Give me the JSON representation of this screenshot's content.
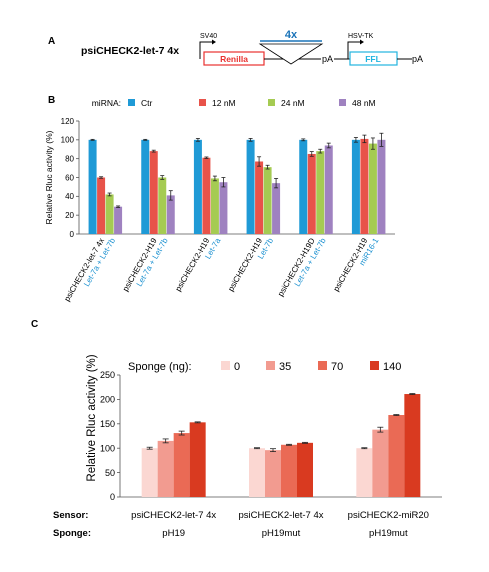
{
  "panelA": {
    "letter": "A",
    "construct_name": "psiCHECK2-let-7 4x",
    "sv40": "SV40",
    "hsvtk": "HSV-TK",
    "renilla": "Renilla",
    "ffl": "FFL",
    "insert": "4x",
    "pA1": "pA",
    "pA2": "pA",
    "colors": {
      "renilla": "#e8312f",
      "ffl": "#22b5e0",
      "insert": "#1a73b8"
    }
  },
  "chart_data": [
    {
      "panel": "B",
      "type": "bar",
      "legend_title": "miRNA:",
      "ylabel": "Relative Rluc activity (%)",
      "ylim": [
        0,
        120
      ],
      "yticks": [
        0,
        20,
        40,
        60,
        80,
        100,
        120
      ],
      "grid": false,
      "legend_placement": "top",
      "categories": [
        {
          "name": "psiCHECK2-let-7 4x",
          "sub": "Let-7a + Let-7b"
        },
        {
          "name": "psiCHECK2-H19",
          "sub": "Let-7a + Let-7b"
        },
        {
          "name": "psiCHECK2-H19",
          "sub": "Let-7a"
        },
        {
          "name": "psiCHECK2-H19",
          "sub": "Let-7b"
        },
        {
          "name": "psiCHECK2-H19D",
          "sub": "Let-7a + Let-7b"
        },
        {
          "name": "psiCHECK2-H19",
          "sub": "miR16-1"
        }
      ],
      "series": [
        {
          "name": "Ctr",
          "color": "#1f9ad6",
          "values": [
            100,
            100,
            100,
            100,
            100,
            100
          ],
          "errors": [
            0.5,
            0.5,
            1.5,
            1.5,
            1,
            2.5
          ]
        },
        {
          "name": "12 nM",
          "color": "#e8534a",
          "values": [
            60,
            88,
            81,
            77,
            85,
            101
          ],
          "errors": [
            0.8,
            1,
            0.8,
            5,
            2.5,
            4
          ]
        },
        {
          "name": "24 nM",
          "color": "#a5cb52",
          "values": [
            42,
            60,
            59,
            71,
            88,
            96
          ],
          "errors": [
            1.5,
            2,
            2.5,
            2,
            2,
            6
          ]
        },
        {
          "name": "48 nM",
          "color": "#9f82c0",
          "values": [
            29,
            41,
            55,
            54,
            94,
            100
          ],
          "errors": [
            0.8,
            5,
            5,
            5,
            2.5,
            7
          ]
        }
      ]
    },
    {
      "panel": "C",
      "type": "bar",
      "legend_title": "Sponge (ng):",
      "ylabel": "Relative Rluc activity (%)",
      "ylim": [
        0,
        250
      ],
      "yticks": [
        0,
        50,
        100,
        150,
        200,
        250
      ],
      "grid": false,
      "legend_placement": "top",
      "row_labels": {
        "sensor": "Sensor:",
        "sponge": "Sponge:"
      },
      "categories": [
        {
          "sensor": "psiCHECK2-let-7 4x",
          "sponge": "pH19"
        },
        {
          "sensor": "psiCHECK2-let-7 4x",
          "sponge": "pH19mut"
        },
        {
          "sensor": "psiCHECK2-miR20",
          "sponge": "pH19mut"
        }
      ],
      "series": [
        {
          "name": "0",
          "color": "#fbd7d2",
          "values": [
            100,
            100,
            100
          ],
          "errors": [
            2,
            1,
            1
          ]
        },
        {
          "name": "35",
          "color": "#f29b90",
          "values": [
            115,
            96,
            138
          ],
          "errors": [
            4,
            3,
            5
          ]
        },
        {
          "name": "70",
          "color": "#ea6a55",
          "values": [
            131,
            107,
            168
          ],
          "errors": [
            4,
            1,
            1
          ]
        },
        {
          "name": "140",
          "color": "#d93a20",
          "values": [
            153,
            111,
            211
          ],
          "errors": [
            1,
            1,
            1
          ]
        }
      ]
    }
  ],
  "panelB_letter": "B",
  "panelC_letter": "C"
}
